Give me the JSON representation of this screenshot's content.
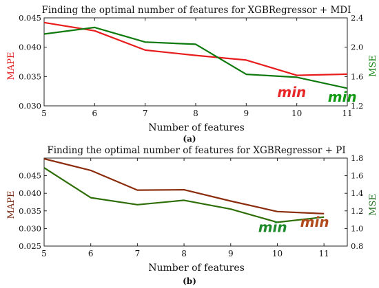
{
  "chart_data": [
    {
      "id": "a",
      "type": "line",
      "panel_label": "(a)",
      "title": "Finding the optimal number of features for XGBRegressor + MDI",
      "xlabel": "Number of features",
      "ylabel_left": "MAPE",
      "ylabel_right": "MSE",
      "x": [
        5,
        6,
        7,
        8,
        9,
        10,
        11
      ],
      "xlim": [
        5,
        11
      ],
      "ylim_left": [
        0.03,
        0.045
      ],
      "ylim_right": [
        1.2,
        2.4
      ],
      "yticks_left": [
        "0.030",
        "0.035",
        "0.040",
        "0.045"
      ],
      "yticks_right": [
        "1.2",
        "1.6",
        "2.0",
        "2.4"
      ],
      "xticks": [
        "5",
        "6",
        "7",
        "8",
        "9",
        "10",
        "11"
      ],
      "colors": {
        "left_axis": "#e02020",
        "right_axis": "#108010"
      },
      "series": [
        {
          "axis": "left",
          "color": "#e81c1c",
          "values": [
            0.0442,
            0.0428,
            0.0395,
            0.0386,
            0.0378,
            0.0352,
            0.0354
          ]
        },
        {
          "axis": "right",
          "color": "#0e7a0e",
          "values": [
            2.18,
            2.27,
            2.07,
            2.04,
            1.63,
            1.59,
            1.44
          ]
        }
      ],
      "annotations": [
        {
          "text": "min",
          "color": "#e82828",
          "x": 9.9,
          "y": 0.0315,
          "axis": "left"
        },
        {
          "text": "min",
          "color": "#129a12",
          "x": 10.9,
          "y": 0.0307,
          "axis": "left"
        }
      ]
    },
    {
      "id": "b",
      "type": "line",
      "panel_label": "(b)",
      "title": "Finding the optimal number of features for XGBRegressor + PI",
      "xlabel": "Number of features",
      "ylabel_left": "MAPE",
      "ylabel_right": "MSE",
      "x": [
        5,
        6,
        7,
        8,
        9,
        10,
        11
      ],
      "xlim": [
        5,
        11.5
      ],
      "ylim_left": [
        0.025,
        0.05
      ],
      "ylim_right": [
        0.8,
        1.8
      ],
      "yticks_left": [
        "0.025",
        "0.030",
        "0.035",
        "0.040",
        "0.045"
      ],
      "yticks_right": [
        "0.8",
        "1.0",
        "1.2",
        "1.4",
        "1.6",
        "1.8"
      ],
      "xticks": [
        "5",
        "6",
        "7",
        "8",
        "9",
        "10",
        "11"
      ],
      "colors": {
        "left_axis": "#7a2a10",
        "right_axis": "#1e6e1e"
      },
      "series": [
        {
          "axis": "left",
          "color": "#8b2c0c",
          "values": [
            0.0498,
            0.0465,
            0.0409,
            0.041,
            0.0378,
            0.0348,
            0.0342
          ]
        },
        {
          "axis": "right",
          "color": "#2e6e06",
          "values": [
            1.69,
            1.35,
            1.27,
            1.32,
            1.22,
            1.07,
            1.13
          ]
        }
      ],
      "annotations": [
        {
          "text": "min",
          "color": "#1e8a2a",
          "x": 9.9,
          "y": 0.029,
          "axis": "left"
        },
        {
          "text": "min",
          "color": "#b04a1c",
          "x": 10.8,
          "y": 0.0305,
          "axis": "left"
        }
      ]
    }
  ]
}
